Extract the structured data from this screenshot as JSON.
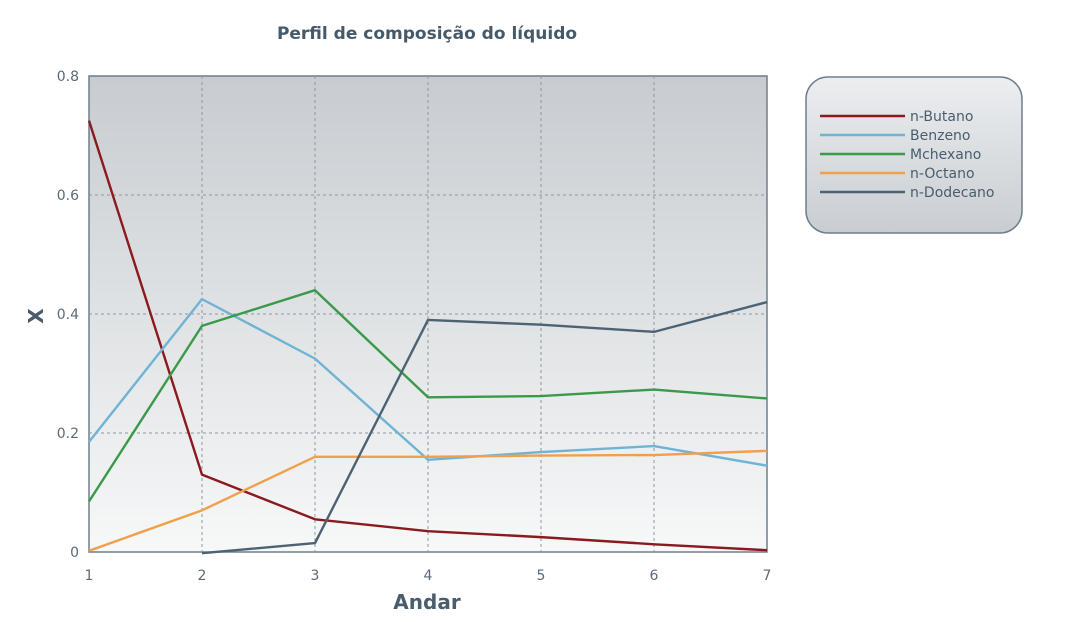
{
  "chart_data": {
    "type": "line",
    "title": "Perfil de composição do líquido",
    "xlabel": "Andar",
    "ylabel": "X",
    "x": [
      1,
      2,
      3,
      4,
      5,
      6,
      7
    ],
    "xlim": [
      1,
      7
    ],
    "ylim": [
      0,
      0.8
    ],
    "x_ticks": [
      "1",
      "2",
      "3",
      "4",
      "5",
      "6",
      "7"
    ],
    "y_ticks": [
      {
        "value": 0,
        "label": "0"
      },
      {
        "value": 0.2,
        "label": "0.2"
      },
      {
        "value": 0.4,
        "label": "0.4"
      },
      {
        "value": 0.6,
        "label": "0.6"
      },
      {
        "value": 0.8,
        "label": "0.8"
      }
    ],
    "grid": true,
    "legend_position": "right",
    "series": [
      {
        "name": "n-Butano",
        "color": "#8b1a1f",
        "values": [
          0.725,
          0.13,
          0.055,
          0.035,
          0.025,
          0.013,
          0.003
        ]
      },
      {
        "name": "Benzeno",
        "color": "#6fb3d5",
        "values": [
          0.185,
          0.425,
          0.325,
          0.155,
          0.168,
          0.178,
          0.145
        ]
      },
      {
        "name": "Mchexano",
        "color": "#3a9a4a",
        "values": [
          0.085,
          0.38,
          0.44,
          0.26,
          0.262,
          0.273,
          0.258
        ]
      },
      {
        "name": "n-Octano",
        "color": "#f0a04b",
        "values": [
          0.002,
          0.07,
          0.16,
          0.16,
          0.162,
          0.163,
          0.17
        ]
      },
      {
        "name": "n-Dodecano",
        "color": "#4d6373",
        "values": [
          null,
          -0.002,
          0.015,
          0.39,
          0.382,
          0.37,
          0.42
        ]
      }
    ]
  }
}
